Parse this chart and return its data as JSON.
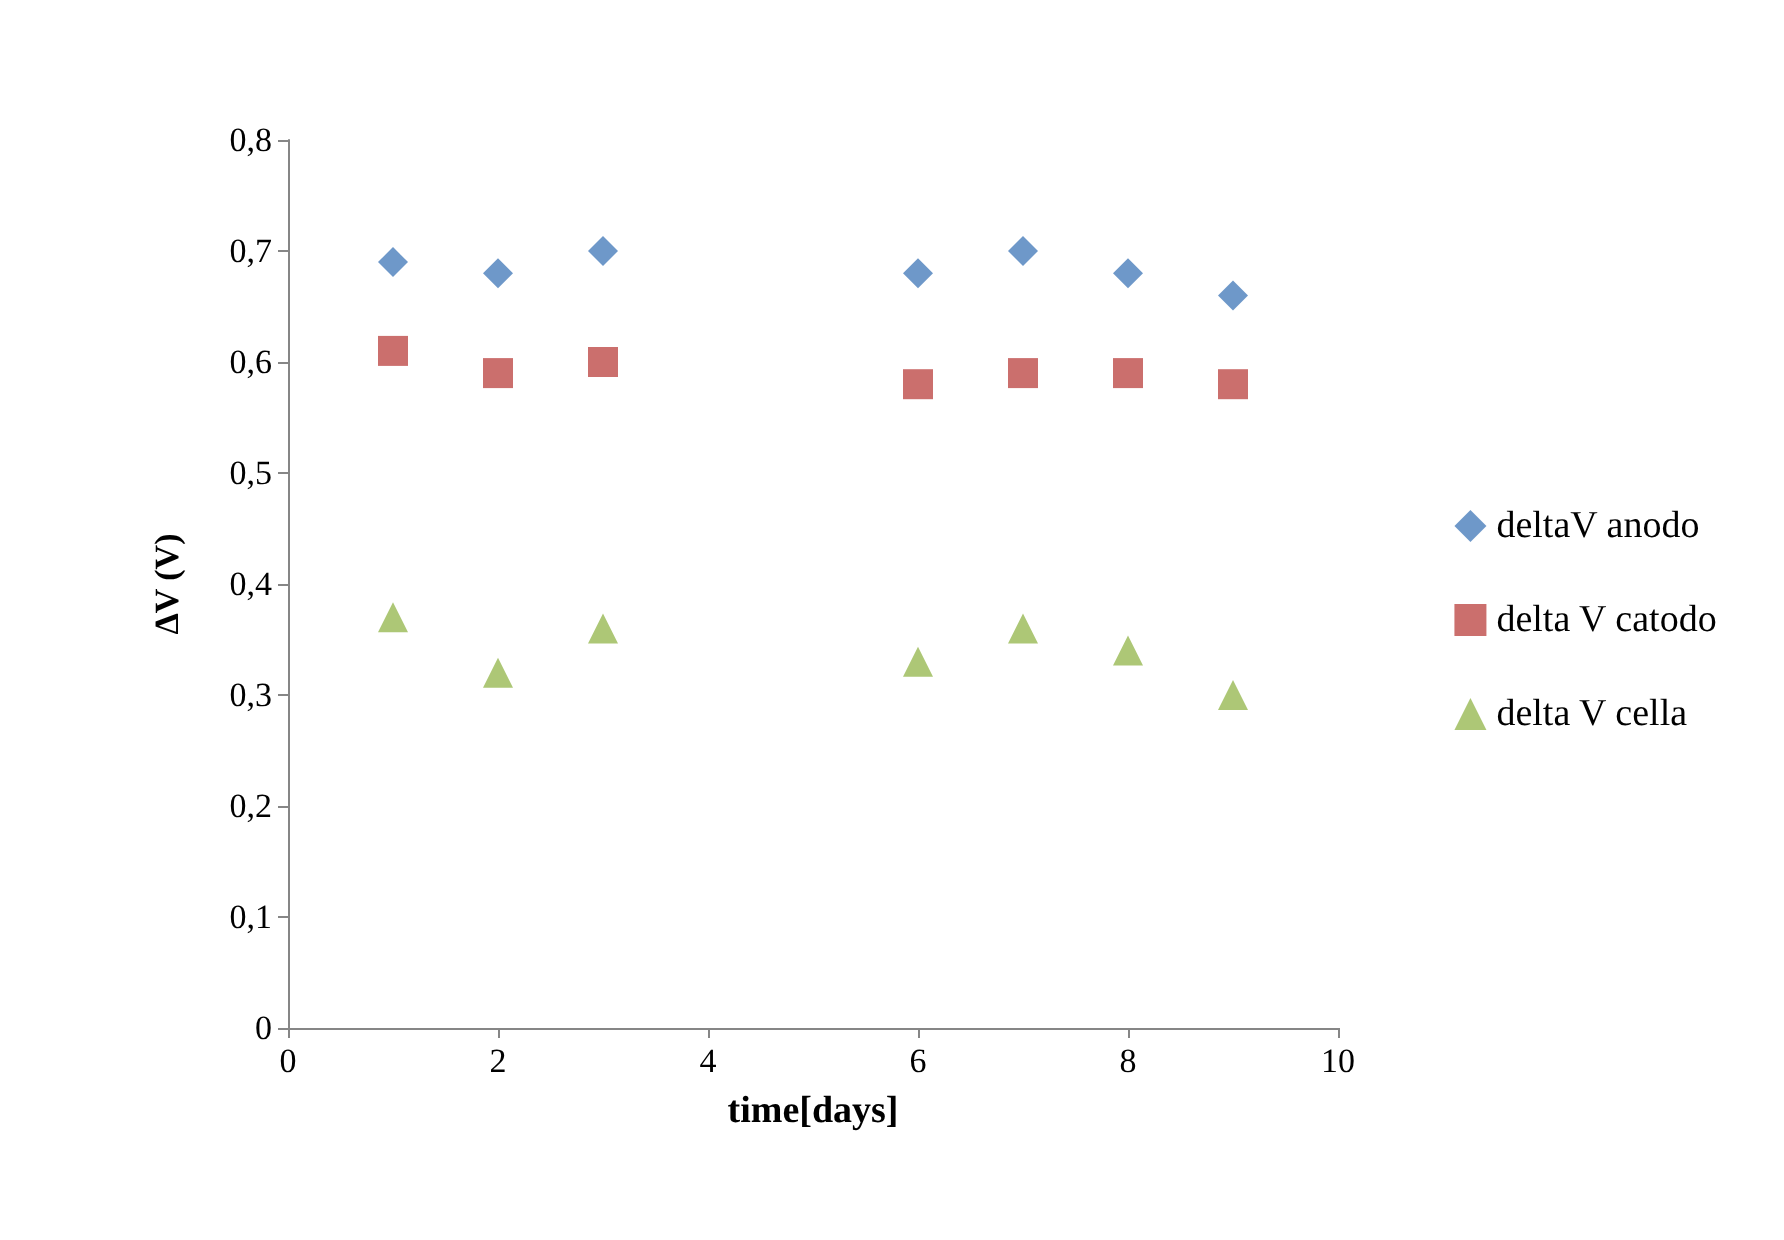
{
  "chart_data": {
    "type": "scatter",
    "xlabel": "time[days]",
    "ylabel": "ΔV (V)",
    "xlim": [
      0,
      10
    ],
    "xticks": [
      0,
      2,
      4,
      6,
      8,
      10
    ],
    "ylim": [
      0,
      0.8
    ],
    "yticks": [
      {
        "value": 0,
        "label": "0"
      },
      {
        "value": 0.1,
        "label": "0,1"
      },
      {
        "value": 0.2,
        "label": "0,2"
      },
      {
        "value": 0.3,
        "label": "0,3"
      },
      {
        "value": 0.4,
        "label": "0,4"
      },
      {
        "value": 0.5,
        "label": "0,5"
      },
      {
        "value": 0.6,
        "label": "0,6"
      },
      {
        "value": 0.7,
        "label": "0,7"
      },
      {
        "value": 0.8,
        "label": "0,8"
      }
    ],
    "grid": false,
    "legend": "right",
    "x": [
      1,
      2,
      3,
      6,
      7,
      8,
      9
    ],
    "series": [
      {
        "name": "deltaV anodo",
        "color": "#4a7ebb",
        "marker": "diamond",
        "values": [
          0.69,
          0.68,
          0.7,
          0.68,
          0.7,
          0.68,
          0.66
        ]
      },
      {
        "name": "delta V catodo",
        "color": "#be4b48",
        "marker": "square",
        "values": [
          0.61,
          0.59,
          0.6,
          0.58,
          0.59,
          0.59,
          0.58
        ]
      },
      {
        "name": "delta V cella",
        "color": "#98b954",
        "marker": "triangle",
        "values": [
          0.37,
          0.32,
          0.36,
          0.33,
          0.36,
          0.34,
          0.3
        ]
      }
    ]
  }
}
